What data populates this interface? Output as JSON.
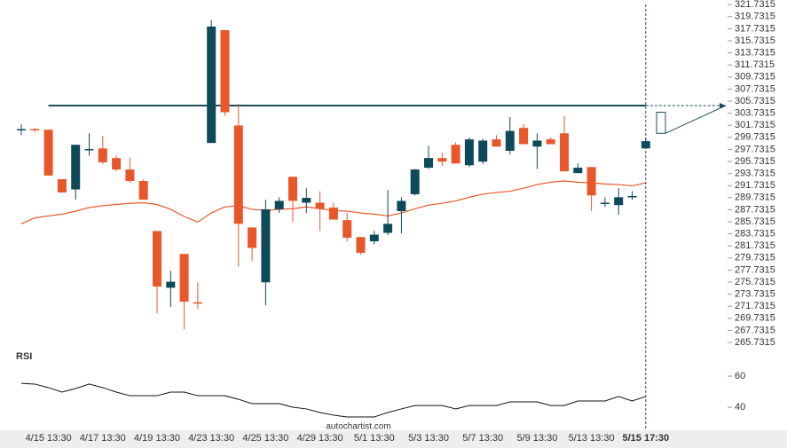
{
  "chart_data": [
    {
      "type": "candlestick",
      "categories": [
        null,
        null,
        "4/15 13:30",
        null,
        null,
        null,
        "4/17 13:30",
        null,
        null,
        null,
        "4/19 13:30",
        null,
        null,
        null,
        "4/23 13:30",
        null,
        null,
        null,
        "4/25 13:30",
        null,
        null,
        null,
        "4/29 13:30",
        null,
        null,
        null,
        "5/1 13:30",
        null,
        null,
        null,
        "5/3 13:30",
        null,
        null,
        null,
        "5/7 13:30",
        null,
        null,
        null,
        "5/9 13:30",
        null,
        null,
        null,
        "5/13 13:30",
        null,
        null,
        null,
        "5/15 17:30"
      ],
      "open": [
        301.0,
        301.1,
        301.0,
        292.8,
        291.1,
        297.6,
        297.9,
        296.3,
        294.4,
        292.5,
        284.2,
        274.8,
        280.4,
        272.4,
        298.8,
        317.5,
        301.7,
        284.8,
        275.7,
        287.8,
        293.2,
        288.9,
        288.9,
        288.1,
        286.0,
        283.2,
        282.5,
        283.9,
        287.5,
        290.3,
        294.7,
        296.3,
        298.5,
        295.1,
        295.7,
        299.4,
        297.5,
        301.3,
        298.2,
        299.4,
        300.4,
        293.8,
        294.8,
        288.9,
        288.5,
        290.0,
        297.9
      ],
      "high": [
        301.9,
        301.3,
        301.0,
        292.8,
        298.5,
        300.4,
        300.0,
        296.7,
        296.4,
        292.8,
        284.2,
        277.6,
        280.4,
        275.7,
        319.2,
        317.5,
        305.3,
        284.8,
        289.4,
        289.8,
        293.2,
        291.3,
        290.8,
        288.9,
        287.2,
        283.2,
        284.2,
        291.0,
        289.8,
        294.5,
        298.3,
        297.2,
        298.9,
        299.7,
        299.5,
        300.1,
        303.1,
        301.9,
        300.4,
        299.7,
        303.3,
        295.4,
        294.8,
        289.8,
        291.3,
        290.8,
        299.7
      ],
      "low": [
        300.1,
        300.6,
        293.4,
        290.6,
        289.4,
        296.7,
        295.3,
        294.1,
        292.2,
        289.4,
        270.6,
        271.6,
        267.9,
        271.3,
        298.8,
        303.3,
        278.3,
        279.2,
        271.9,
        287.2,
        285.7,
        287.2,
        284.2,
        286.1,
        282.5,
        280.3,
        282.0,
        283.5,
        283.8,
        290.1,
        294.5,
        295.0,
        295.4,
        294.8,
        295.3,
        298.2,
        296.9,
        298.6,
        294.5,
        298.6,
        294.1,
        293.8,
        287.5,
        288.2,
        286.9,
        289.4,
        297.9
      ],
      "close": [
        301.1,
        301.0,
        293.4,
        290.6,
        298.5,
        297.8,
        295.6,
        294.4,
        292.5,
        289.4,
        275.0,
        275.8,
        272.5,
        272.3,
        318.1,
        303.9,
        285.4,
        281.4,
        287.8,
        289.2,
        289.2,
        289.7,
        287.9,
        286.1,
        283.1,
        280.6,
        283.6,
        285.4,
        289.2,
        294.4,
        296.3,
        295.7,
        295.4,
        299.4,
        299.2,
        298.2,
        300.8,
        298.6,
        299.2,
        298.6,
        294.1,
        294.7,
        290.1,
        288.9,
        289.8,
        290.0,
        299.1
      ],
      "ma": [
        285.4,
        286.4,
        286.7,
        287.0,
        287.5,
        288.1,
        288.4,
        288.6,
        288.8,
        288.9,
        288.6,
        287.8,
        286.6,
        285.7,
        287.2,
        288.2,
        288.4,
        287.8,
        287.6,
        287.8,
        287.9,
        288.2,
        287.9,
        287.6,
        287.5,
        287.2,
        287.0,
        286.7,
        287.2,
        287.9,
        288.5,
        288.8,
        289.2,
        289.8,
        290.3,
        290.6,
        290.8,
        291.3,
        291.9,
        292.3,
        292.5,
        292.3,
        292.2,
        292.0,
        291.9,
        291.7,
        292.2
      ],
      "up_color": "#0e4a5a",
      "down_color": "#e8572a",
      "ma_color": "#e8572a",
      "level_color": "#1d4f5a",
      "level": 305.0,
      "forecast_range": [
        300.4,
        303.9
      ],
      "ylim": [
        265.0,
        322.5
      ],
      "yticks": [
        321.7315,
        319.7315,
        317.7315,
        315.7315,
        313.7315,
        311.7315,
        309.7315,
        307.7315,
        305.7315,
        303.7315,
        301.7315,
        299.7315,
        297.7315,
        295.7315,
        293.7315,
        291.7315,
        289.7315,
        287.7315,
        285.7315,
        283.7315,
        281.7315,
        279.7315,
        277.7315,
        275.7315,
        273.7315,
        271.7315,
        269.7315,
        267.7315,
        265.7315
      ],
      "footer": "autochartist.com"
    },
    {
      "type": "line",
      "title": "RSI",
      "color": "#111111",
      "values": [
        55.4,
        54.9,
        52.6,
        49.7,
        52.0,
        54.9,
        52.6,
        49.7,
        47.4,
        47.4,
        47.4,
        49.7,
        49.7,
        47.4,
        47.4,
        47.4,
        45.1,
        42.3,
        42.3,
        42.3,
        40.0,
        38.9,
        36.6,
        34.9,
        33.7,
        33.7,
        33.7,
        36.6,
        38.9,
        41.1,
        41.1,
        41.1,
        38.9,
        41.1,
        41.1,
        41.1,
        43.4,
        43.4,
        43.4,
        41.1,
        41.1,
        44.0,
        44.0,
        44.0,
        46.9,
        44.0,
        46.9
      ],
      "ylim": [
        28,
        78.3
      ],
      "yticks": [
        40,
        60
      ]
    }
  ]
}
